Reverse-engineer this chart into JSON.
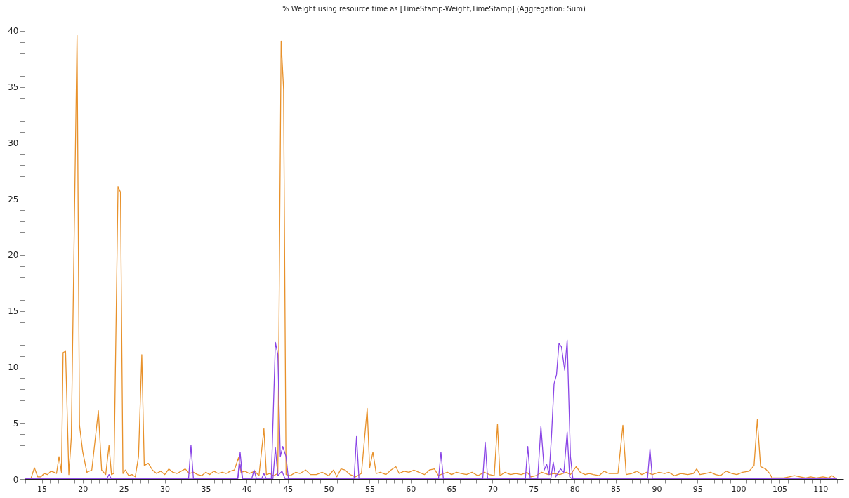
{
  "chart_data": {
    "type": "line",
    "title": "% Weight using resource time as [TimeStamp-Weight,TimeStamp] (Aggregation: Sum)",
    "xlim": [
      12.9,
      112.8
    ],
    "xticks": [
      {
        "value": 13,
        "label": null
      },
      {
        "value": 14,
        "label": null
      },
      15,
      {
        "value": 16,
        "label": null
      },
      {
        "value": 17,
        "label": null
      },
      {
        "value": 18,
        "label": null
      },
      {
        "value": 19,
        "label": null
      },
      20,
      {
        "value": 21,
        "label": null
      },
      {
        "value": 22,
        "label": null
      },
      {
        "value": 23,
        "label": null
      },
      {
        "value": 24,
        "label": null
      },
      25,
      {
        "value": 26,
        "label": null
      },
      {
        "value": 27,
        "label": null
      },
      {
        "value": 28,
        "label": null
      },
      {
        "value": 29,
        "label": null
      },
      30,
      {
        "value": 31,
        "label": null
      },
      {
        "value": 32,
        "label": null
      },
      {
        "value": 33,
        "label": null
      },
      {
        "value": 34,
        "label": null
      },
      35,
      {
        "value": 36,
        "label": null
      },
      {
        "value": 37,
        "label": null
      },
      {
        "value": 38,
        "label": null
      },
      {
        "value": 39,
        "label": null
      },
      40,
      {
        "value": 41,
        "label": null
      },
      {
        "value": 42,
        "label": null
      },
      {
        "value": 43,
        "label": null
      },
      {
        "value": 44,
        "label": null
      },
      45,
      {
        "value": 46,
        "label": null
      },
      {
        "value": 47,
        "label": null
      },
      {
        "value": 48,
        "label": null
      },
      {
        "value": 49,
        "label": null
      },
      50,
      {
        "value": 51,
        "label": null
      },
      {
        "value": 52,
        "label": null
      },
      {
        "value": 53,
        "label": null
      },
      {
        "value": 54,
        "label": null
      },
      55,
      {
        "value": 56,
        "label": null
      },
      {
        "value": 57,
        "label": null
      },
      {
        "value": 58,
        "label": null
      },
      {
        "value": 59,
        "label": null
      },
      60,
      {
        "value": 61,
        "label": null
      },
      {
        "value": 62,
        "label": null
      },
      {
        "value": 63,
        "label": null
      },
      {
        "value": 64,
        "label": null
      },
      65,
      {
        "value": 66,
        "label": null
      },
      {
        "value": 67,
        "label": null
      },
      {
        "value": 68,
        "label": null
      },
      {
        "value": 69,
        "label": null
      },
      70,
      {
        "value": 71,
        "label": null
      },
      {
        "value": 72,
        "label": null
      },
      {
        "value": 73,
        "label": null
      },
      {
        "value": 74,
        "label": null
      },
      75,
      {
        "value": 76,
        "label": null
      },
      {
        "value": 77,
        "label": null
      },
      {
        "value": 78,
        "label": null
      },
      {
        "value": 79,
        "label": null
      },
      80,
      {
        "value": 81,
        "label": null
      },
      {
        "value": 82,
        "label": null
      },
      {
        "value": 83,
        "label": null
      },
      {
        "value": 84,
        "label": null
      },
      85,
      {
        "value": 86,
        "label": null
      },
      {
        "value": 87,
        "label": null
      },
      {
        "value": 88,
        "label": null
      },
      {
        "value": 89,
        "label": null
      },
      90,
      {
        "value": 91,
        "label": null
      },
      {
        "value": 92,
        "label": null
      },
      {
        "value": 93,
        "label": null
      },
      {
        "value": 94,
        "label": null
      },
      95,
      {
        "value": 96,
        "label": null
      },
      {
        "value": 97,
        "label": null
      },
      {
        "value": 98,
        "label": null
      },
      {
        "value": 99,
        "label": null
      },
      100,
      {
        "value": 101,
        "label": null
      },
      {
        "value": 102,
        "label": null
      },
      {
        "value": 103,
        "label": null
      },
      {
        "value": 104,
        "label": null
      },
      105,
      {
        "value": 106,
        "label": null
      },
      {
        "value": 107,
        "label": null
      },
      {
        "value": 108,
        "label": null
      },
      {
        "value": 109,
        "label": null
      },
      110,
      {
        "value": 111,
        "label": null
      },
      {
        "value": 112,
        "label": null
      }
    ],
    "ylim": [
      0,
      41
    ],
    "yticks": [
      0,
      {
        "value": 1,
        "label": null
      },
      {
        "value": 2,
        "label": null
      },
      {
        "value": 3,
        "label": null
      },
      {
        "value": 4,
        "label": null
      },
      5,
      {
        "value": 6,
        "label": null
      },
      {
        "value": 7,
        "label": null
      },
      {
        "value": 8,
        "label": null
      },
      {
        "value": 9,
        "label": null
      },
      10,
      {
        "value": 11,
        "label": null
      },
      {
        "value": 12,
        "label": null
      },
      {
        "value": 13,
        "label": null
      },
      {
        "value": 14,
        "label": null
      },
      15,
      {
        "value": 16,
        "label": null
      },
      {
        "value": 17,
        "label": null
      },
      {
        "value": 18,
        "label": null
      },
      {
        "value": 19,
        "label": null
      },
      20,
      {
        "value": 21,
        "label": null
      },
      {
        "value": 22,
        "label": null
      },
      {
        "value": 23,
        "label": null
      },
      {
        "value": 24,
        "label": null
      },
      25,
      {
        "value": 26,
        "label": null
      },
      {
        "value": 27,
        "label": null
      },
      {
        "value": 28,
        "label": null
      },
      {
        "value": 29,
        "label": null
      },
      30,
      {
        "value": 31,
        "label": null
      },
      {
        "value": 32,
        "label": null
      },
      {
        "value": 33,
        "label": null
      },
      {
        "value": 34,
        "label": null
      },
      35,
      {
        "value": 36,
        "label": null
      },
      {
        "value": 37,
        "label": null
      },
      {
        "value": 38,
        "label": null
      },
      {
        "value": 39,
        "label": null
      },
      40,
      {
        "value": 41,
        "label": null
      }
    ],
    "line_style": "solid",
    "series": [
      {
        "color": "#e8912a",
        "x": [
          13.0,
          13.7,
          14.1,
          14.5,
          14.9,
          15.3,
          15.7,
          16.1,
          16.5,
          16.8,
          17.1,
          17.4,
          17.6,
          17.9,
          18.3,
          18.6,
          19.3,
          19.6,
          20.0,
          20.5,
          21.1,
          21.9,
          22.3,
          22.8,
          23.2,
          23.5,
          23.8,
          24.3,
          24.6,
          24.9,
          25.2,
          25.6,
          26.0,
          26.4,
          26.8,
          27.2,
          27.5,
          28.0,
          28.5,
          29.0,
          29.5,
          30.0,
          30.5,
          31.0,
          31.5,
          32.0,
          32.5,
          33.0,
          33.5,
          34.0,
          34.5,
          35.0,
          35.5,
          36.0,
          36.5,
          37.0,
          37.5,
          38.0,
          38.5,
          39.0,
          39.3,
          39.8,
          40.3,
          41.0,
          41.5,
          42.1,
          42.4,
          42.8,
          43.3,
          43.8,
          44.2,
          44.5,
          44.8,
          45.3,
          46.0,
          46.5,
          47.2,
          47.8,
          48.5,
          49.2,
          50.0,
          50.6,
          51.0,
          51.5,
          52.0,
          52.6,
          53.3,
          54.0,
          54.7,
          55.0,
          55.4,
          55.8,
          56.3,
          57.0,
          57.6,
          58.2,
          58.6,
          59.2,
          59.8,
          60.4,
          61.0,
          61.7,
          62.3,
          62.9,
          63.4,
          64.0,
          64.5,
          65.0,
          65.6,
          66.2,
          66.8,
          67.5,
          68.2,
          69.0,
          69.6,
          70.2,
          70.6,
          70.9,
          71.5,
          72.2,
          72.8,
          73.5,
          74.2,
          74.7,
          75.3,
          76.0,
          76.8,
          77.5,
          78.2,
          79.0,
          79.5,
          80.2,
          80.7,
          81.3,
          81.8,
          82.3,
          83.0,
          83.6,
          84.2,
          84.8,
          85.3,
          85.9,
          86.3,
          87.0,
          87.6,
          88.2,
          88.8,
          89.5,
          90.3,
          91.0,
          91.5,
          92.2,
          93.0,
          93.8,
          94.5,
          94.9,
          95.3,
          96.0,
          96.6,
          97.2,
          97.8,
          98.5,
          99.2,
          99.8,
          100.5,
          101.3,
          101.9,
          102.3,
          102.7,
          103.3,
          103.8,
          104.1,
          104.8,
          105.5,
          106.2,
          106.8,
          107.5,
          108.2,
          108.8,
          109.5,
          110.3,
          111.0,
          111.4,
          112.0
        ],
        "values": [
          0,
          0.1,
          1.0,
          0.2,
          0.2,
          0.5,
          0.4,
          0.7,
          0.6,
          0.5,
          2.0,
          0.6,
          11.3,
          11.4,
          0.4,
          3.7,
          39.6,
          4.8,
          2.4,
          0.6,
          0.8,
          6.1,
          0.8,
          0.4,
          3.0,
          0.4,
          0.5,
          26.1,
          25.6,
          0.5,
          0.8,
          0.3,
          0.4,
          0.2,
          2.0,
          11.1,
          1.2,
          1.4,
          0.8,
          0.5,
          0.7,
          0.4,
          0.9,
          0.6,
          0.5,
          0.7,
          0.9,
          0.5,
          0.6,
          0.4,
          0.3,
          0.6,
          0.4,
          0.7,
          0.5,
          0.6,
          0.5,
          0.7,
          0.8,
          1.9,
          0.6,
          0.7,
          0.5,
          0.7,
          0.3,
          4.5,
          0.4,
          0.5,
          0.3,
          0.5,
          39.1,
          34.8,
          0.4,
          0.3,
          0.6,
          0.5,
          0.8,
          0.4,
          0.4,
          0.6,
          0.3,
          0.8,
          0.2,
          0.9,
          0.8,
          0.4,
          0.2,
          0.5,
          6.3,
          1.0,
          2.4,
          0.5,
          0.6,
          0.4,
          0.8,
          1.1,
          0.5,
          0.7,
          0.6,
          0.8,
          0.6,
          0.4,
          0.8,
          0.9,
          0.3,
          0.5,
          0.6,
          0.4,
          0.6,
          0.5,
          0.4,
          0.6,
          0.3,
          0.6,
          0.4,
          0.3,
          4.9,
          0.3,
          0.6,
          0.4,
          0.5,
          0.4,
          0.6,
          0.2,
          0.3,
          0.6,
          0.4,
          0.5,
          0.4,
          0.6,
          0.4,
          1.1,
          0.6,
          0.4,
          0.5,
          0.4,
          0.3,
          0.7,
          0.5,
          0.5,
          0.5,
          4.8,
          0.4,
          0.5,
          0.7,
          0.4,
          0.6,
          0.4,
          0.6,
          0.5,
          0.6,
          0.3,
          0.5,
          0.4,
          0.5,
          0.9,
          0.4,
          0.5,
          0.6,
          0.4,
          0.3,
          0.7,
          0.5,
          0.4,
          0.6,
          0.7,
          1.2,
          5.3,
          1.1,
          0.9,
          0.5,
          0.1,
          0.1,
          0.1,
          0.2,
          0.3,
          0.2,
          0.1,
          0.2,
          0.1,
          0.2,
          0.1,
          0.3,
          0
        ]
      },
      {
        "color": "#8a45e6",
        "x": [
          13.0,
          22.9,
          23.2,
          23.5,
          32.9,
          33.2,
          33.5,
          38.9,
          39.2,
          39.5,
          40.6,
          40.9,
          41.2,
          41.8,
          42.1,
          42.4,
          43.0,
          43.5,
          43.8,
          44.1,
          44.4,
          44.8,
          45.1,
          53.1,
          53.4,
          53.7,
          63.4,
          63.7,
          64.0,
          68.8,
          69.1,
          69.4,
          74.0,
          74.3,
          74.6,
          75.5,
          75.9,
          76.3,
          76.6,
          76.9,
          77.2,
          77.5,
          77.8,
          78.1,
          78.4,
          78.8,
          79.1,
          79.5,
          79.8,
          88.9,
          89.2,
          89.5,
          112.0
        ],
        "values": [
          0,
          0,
          0.4,
          0,
          0,
          3.0,
          0,
          0,
          2.4,
          0,
          0,
          0.8,
          0,
          0,
          0.5,
          0,
          0,
          12.2,
          11.1,
          2.0,
          2.9,
          2.0,
          0,
          0,
          3.8,
          0,
          0,
          2.4,
          0,
          0,
          3.3,
          0,
          0,
          2.9,
          0,
          0,
          4.7,
          0.8,
          1.3,
          0.4,
          4.0,
          8.5,
          9.3,
          12.1,
          11.8,
          9.7,
          12.4,
          2.0,
          0,
          0,
          2.7,
          0,
          0
        ]
      },
      {
        "color": "#8a45e6",
        "x": [
          13.0,
          38.9,
          39.2,
          39.5,
          43.2,
          43.5,
          43.8,
          44.3,
          44.7,
          75.5,
          77.1,
          77.4,
          77.7,
          78.3,
          78.7,
          79.1,
          79.4,
          79.7,
          112.0
        ],
        "values": [
          0,
          0,
          1.3,
          0,
          0,
          2.8,
          0.3,
          0.7,
          0,
          0,
          0,
          1.5,
          0.2,
          0.9,
          0.6,
          4.2,
          0.2,
          0,
          0
        ]
      }
    ]
  }
}
